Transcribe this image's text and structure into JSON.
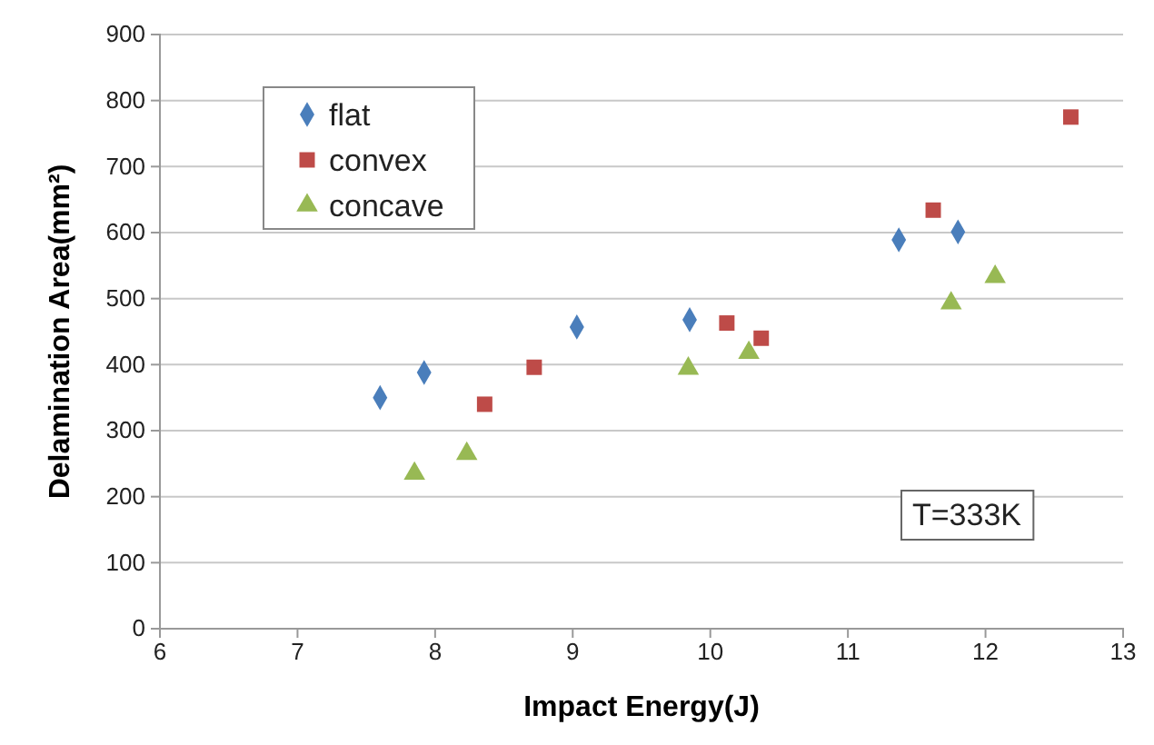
{
  "chart_data": {
    "type": "scatter",
    "xlabel": "Impact Energy(J)",
    "ylabel": "Delamination Area(mm²)",
    "xlim": [
      6,
      13
    ],
    "xticks": [
      6,
      7,
      8,
      9,
      10,
      11,
      12,
      13
    ],
    "ylim": [
      0,
      900
    ],
    "yticks": [
      0,
      100,
      200,
      300,
      400,
      500,
      600,
      700,
      800,
      900
    ],
    "grid": "y",
    "legend": "top left",
    "annotations": [
      "T=333K"
    ],
    "series": [
      {
        "name": "flat",
        "color": "#4a7ebb",
        "marker": "diamond",
        "x": [
          7.6,
          7.92,
          9.03,
          9.85,
          11.37,
          11.8
        ],
        "values": [
          350,
          388,
          457,
          468,
          589,
          601
        ]
      },
      {
        "name": "convex",
        "color": "#be4b48",
        "marker": "square",
        "x": [
          8.36,
          8.72,
          10.12,
          10.37,
          11.62,
          12.62
        ],
        "values": [
          340,
          396,
          463,
          440,
          634,
          775
        ]
      },
      {
        "name": "concave",
        "color": "#98b954",
        "marker": "triangle",
        "x": [
          7.85,
          8.23,
          9.84,
          10.28,
          11.75,
          12.07
        ],
        "values": [
          235,
          265,
          394,
          418,
          493,
          533
        ]
      }
    ]
  }
}
